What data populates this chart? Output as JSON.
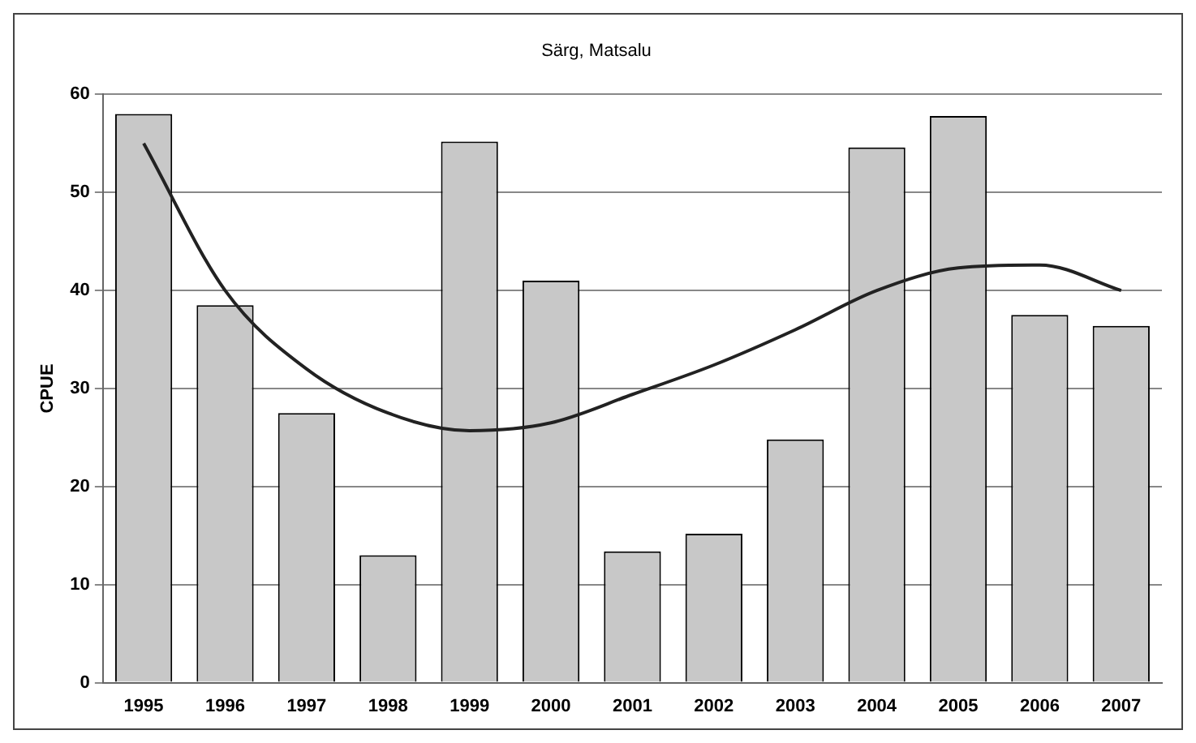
{
  "chart_data": {
    "type": "bar",
    "title": "Särg, Matsalu",
    "ylabel": "CPUE",
    "categories": [
      "1995",
      "1996",
      "1997",
      "1998",
      "1999",
      "2000",
      "2001",
      "2002",
      "2003",
      "2004",
      "2005",
      "2006",
      "2007"
    ],
    "series": [
      {
        "color": "#c8c8c8",
        "values": [
          58,
          38.5,
          27.5,
          13,
          55.2,
          41,
          13.4,
          15.2,
          24.8,
          54.6,
          57.8,
          37.5,
          36.4
        ]
      },
      {
        "type": "line",
        "color": "#222222",
        "values": [
          55,
          40,
          32,
          27.5,
          25.7,
          26.5,
          29.4,
          32.4,
          36,
          40,
          42.3,
          42.6,
          40
        ]
      }
    ],
    "ylim": [
      0,
      60
    ],
    "yticks": [
      0,
      10,
      20,
      30,
      40,
      50,
      60
    ],
    "grid": "y",
    "legend": false,
    "marker": "none"
  }
}
